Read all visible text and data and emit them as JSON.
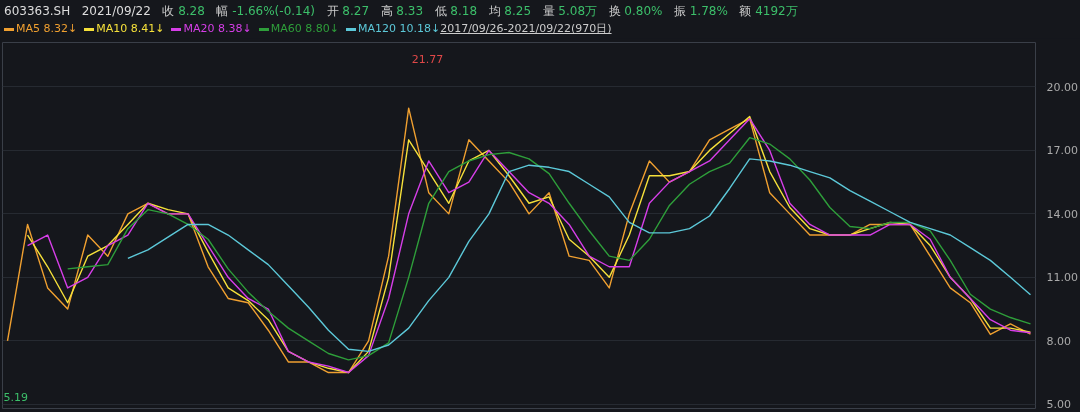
{
  "chart_data": {
    "type": "line",
    "title": "603363.SH",
    "subtitle": "2021/09/22",
    "categories": [
      null,
      null,
      null,
      null,
      null,
      null,
      null,
      null,
      null,
      null,
      null,
      null,
      null,
      null,
      null,
      null,
      null,
      null,
      null,
      null,
      null,
      null,
      null,
      null,
      null,
      null,
      null,
      null,
      null,
      null,
      null,
      null,
      null,
      null,
      null,
      null,
      null,
      null,
      null,
      null,
      null,
      null,
      null,
      null,
      null,
      null,
      null,
      null,
      null,
      null,
      null,
      null
    ],
    "series": [
      {
        "name": "MA5",
        "color": "#f0a030",
        "values": [
          8.0,
          13.5,
          10.5,
          9.5,
          13.0,
          12.0,
          14.0,
          14.5,
          14.0,
          14.0,
          11.5,
          10.0,
          9.8,
          8.5,
          7.0,
          7.0,
          6.5,
          6.5,
          8.0,
          12.0,
          19.0,
          15.0,
          14.0,
          17.5,
          16.5,
          15.5,
          14.0,
          15.0,
          12.0,
          11.8,
          10.5,
          14.0,
          16.5,
          15.5,
          16.0,
          17.5,
          18.0,
          18.5,
          15.0,
          14.0,
          13.0,
          13.0,
          13.0,
          13.5,
          13.5,
          13.5,
          12.0,
          10.5,
          9.8,
          8.3,
          8.8,
          8.32
        ]
      },
      {
        "name": "MA10",
        "color": "#f5e03a",
        "values": [
          null,
          13.0,
          11.5,
          9.8,
          12.0,
          12.5,
          13.5,
          14.5,
          14.2,
          14.0,
          12.2,
          10.5,
          9.9,
          9.0,
          7.5,
          7.0,
          6.7,
          6.5,
          7.5,
          11.0,
          17.5,
          16.0,
          14.5,
          16.5,
          17.0,
          15.8,
          14.5,
          14.8,
          12.8,
          12.0,
          11.0,
          13.0,
          15.8,
          15.8,
          16.0,
          17.0,
          17.8,
          18.6,
          16.0,
          14.3,
          13.3,
          13.0,
          13.0,
          13.3,
          13.6,
          13.5,
          12.5,
          11.0,
          10.0,
          8.6,
          8.6,
          8.41
        ]
      },
      {
        "name": "MA20",
        "color": "#d63ee8",
        "values": [
          null,
          12.5,
          13.0,
          10.5,
          11.0,
          12.5,
          13.0,
          14.5,
          14.0,
          14.0,
          12.5,
          11.0,
          10.0,
          9.5,
          7.5,
          7.0,
          6.8,
          6.5,
          7.3,
          10.0,
          14.0,
          16.5,
          15.0,
          15.5,
          17.0,
          16.0,
          15.0,
          14.5,
          13.5,
          12.0,
          11.5,
          11.5,
          14.5,
          15.5,
          16.0,
          16.5,
          17.5,
          18.5,
          17.0,
          14.5,
          13.5,
          13.0,
          13.0,
          13.0,
          13.5,
          13.5,
          12.8,
          11.0,
          10.0,
          9.0,
          8.5,
          8.38
        ]
      },
      {
        "name": "MA60",
        "color": "#2e9e3a",
        "values": [
          null,
          null,
          null,
          11.4,
          11.5,
          11.6,
          13.3,
          14.2,
          14.0,
          13.5,
          12.8,
          11.4,
          10.3,
          9.4,
          8.6,
          8.0,
          7.4,
          7.1,
          7.3,
          7.9,
          11.0,
          14.5,
          16.0,
          16.5,
          16.8,
          16.9,
          16.6,
          15.9,
          14.5,
          13.2,
          12.0,
          11.8,
          12.8,
          14.4,
          15.4,
          16.0,
          16.4,
          17.6,
          17.3,
          16.6,
          15.6,
          14.3,
          13.4,
          13.3,
          13.6,
          13.6,
          13.2,
          11.8,
          10.2,
          9.5,
          9.1,
          8.8
        ]
      },
      {
        "name": "MA120",
        "color": "#5cc8d8",
        "values": [
          null,
          null,
          null,
          null,
          null,
          null,
          11.9,
          12.3,
          12.9,
          13.5,
          13.5,
          13.0,
          12.3,
          11.6,
          10.6,
          9.6,
          8.5,
          7.6,
          7.5,
          7.8,
          8.6,
          9.9,
          11.0,
          12.7,
          14.0,
          16.0,
          16.3,
          16.2,
          16.0,
          15.4,
          14.8,
          13.6,
          13.1,
          13.1,
          13.3,
          13.9,
          15.2,
          16.6,
          16.5,
          16.3,
          16.0,
          15.7,
          15.1,
          14.6,
          14.1,
          13.6,
          13.3,
          13.0,
          12.4,
          11.8,
          11.0,
          10.18
        ]
      }
    ],
    "annotations": [
      "收 8.28",
      "幅 -1.66%(-0.14)",
      "开 8.27",
      "高 8.33",
      "低 8.18",
      "均 8.25",
      "量 5.08万",
      "换 0.80%",
      "振 1.78%",
      "额 4192万",
      "8.32↓",
      "8.41↓",
      "8.38↓",
      "8.80↓",
      "10.18↓",
      "2017/09/26-2021/09/22(970日)",
      "21.77",
      "5.19"
    ],
    "ylim": [
      4.8,
      22.1
    ],
    "yticks": [
      {
        "value": 5,
        "label": "5.00"
      },
      {
        "value": 8,
        "label": "8.00"
      },
      {
        "value": 11,
        "label": "11.00"
      },
      {
        "value": 14,
        "label": "14.00"
      },
      {
        "value": 17,
        "label": "17.00"
      },
      {
        "value": 20,
        "label": "20.00"
      }
    ],
    "grid": "y",
    "legend": "top left",
    "tick_labels": "y",
    "marker": "none",
    "line_style": "solid"
  }
}
